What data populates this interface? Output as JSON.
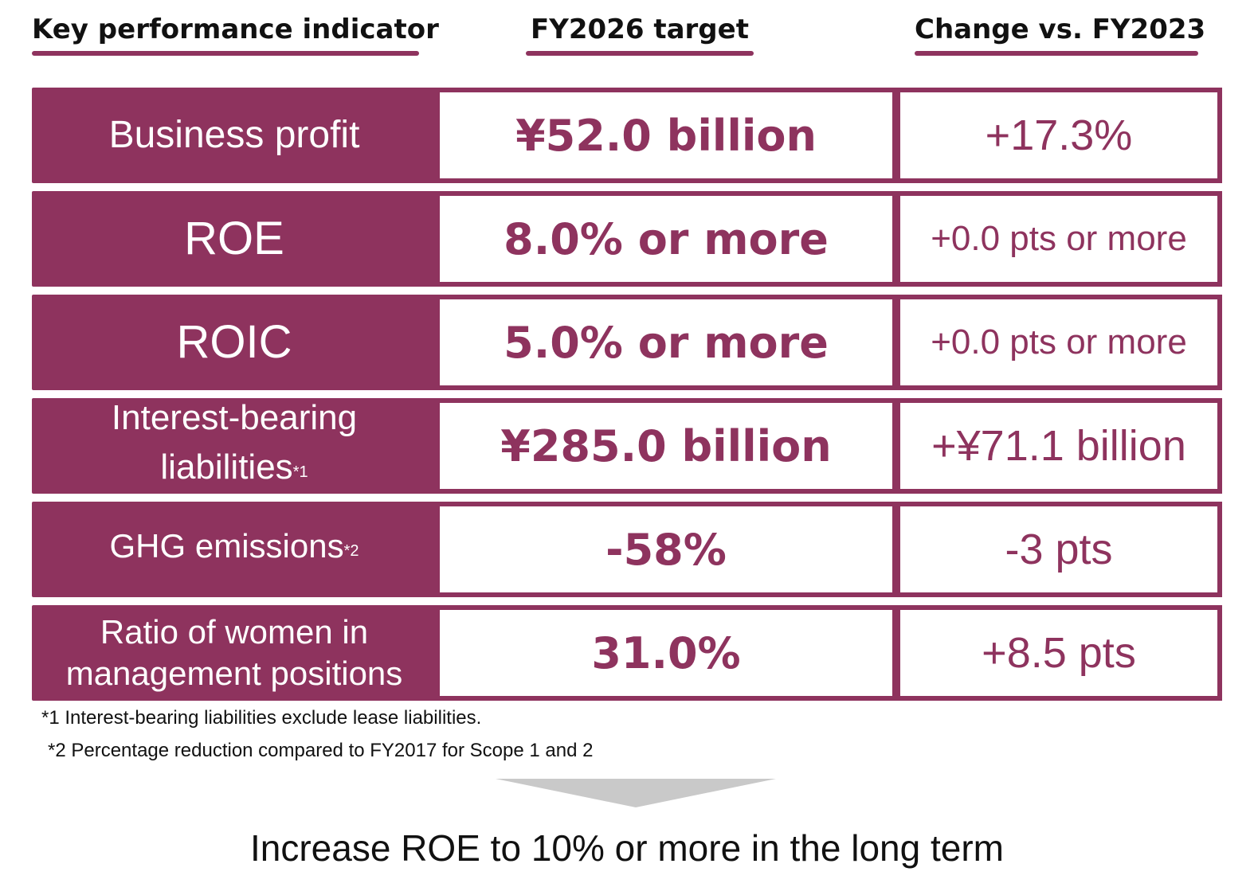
{
  "headers": {
    "kpi": "Key performance indicator",
    "target": "FY2026 target",
    "change": "Change vs. FY2023"
  },
  "rows": [
    {
      "label": "Business profit",
      "target": "¥52.0 billion",
      "change": "+17.3%"
    },
    {
      "label": "ROE",
      "target": "8.0% or more",
      "change": "+0.0 pts or more"
    },
    {
      "label": "ROIC",
      "target": "5.0% or more",
      "change": "+0.0 pts or more"
    },
    {
      "label_line1": "Interest-bearing",
      "label_line2": "liabilities",
      "note": "*1",
      "target": "¥285.0 billion",
      "change": "+¥71.1 billion"
    },
    {
      "label": "GHG emissions",
      "note": "*2",
      "target": "-58%",
      "change": "-3 pts"
    },
    {
      "label_line1": "Ratio of women in",
      "label_line2": "management positions",
      "target": "31.0%",
      "change": "+8.5 pts"
    }
  ],
  "footnotes": [
    "*1 Interest-bearing liabilities exclude lease liabilities.",
    "*2 Percentage reduction compared to FY2017 for Scope 1 and 2"
  ],
  "conclusion": "Increase ROE to 10% or more in the long term",
  "colors": {
    "accent": "#8e335e",
    "arrow": "#c9c9c9"
  },
  "icons": {
    "arrow": "down-arrow-icon"
  }
}
